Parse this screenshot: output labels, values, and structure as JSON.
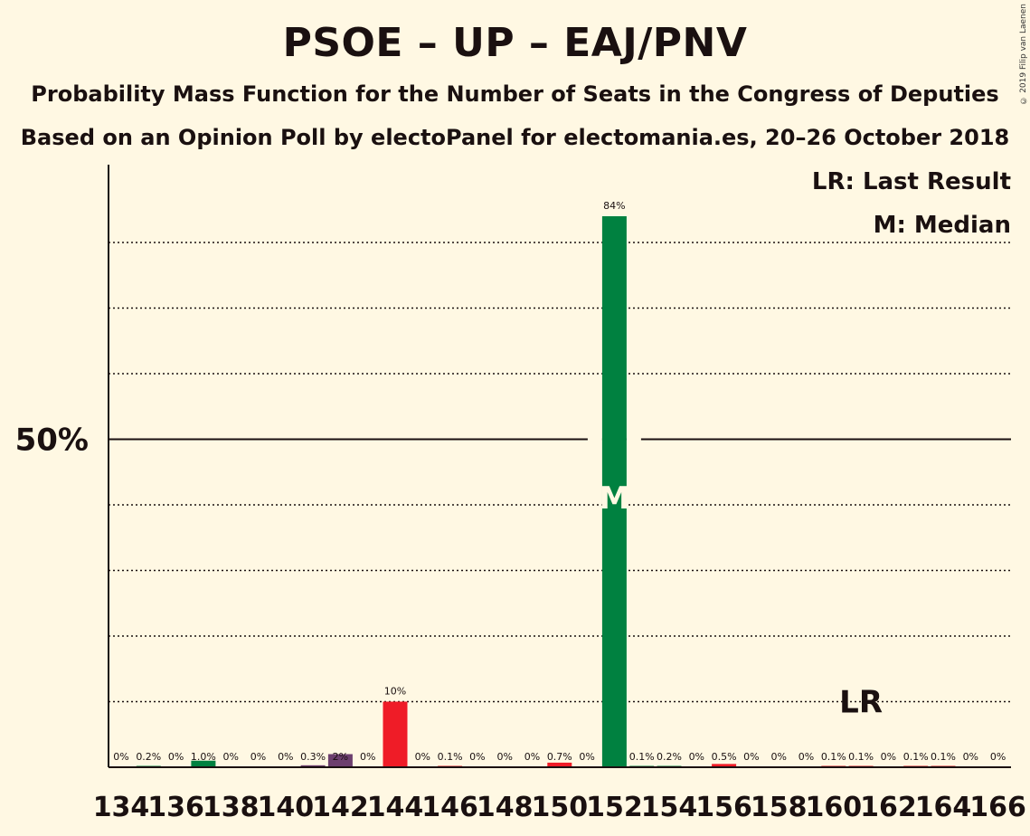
{
  "title": "PSOE – UP – EAJ/PNV",
  "subtitle1": "Probability Mass Function for the Number of Seats in the Congress of Deputies",
  "subtitle2": "Based on an Opinion Poll by electoPanel for electomania.es, 20–26 October 2018",
  "copyright": "© 2019 Filip van Laenen",
  "legend": {
    "lr": "LR: Last Result",
    "m": "M: Median"
  },
  "markers": {
    "median_label": "M",
    "median_seats": 152,
    "lr_label": "LR",
    "lr_seats": 161
  },
  "colors": {
    "background": "#FFF8E3",
    "psoe": "#EF1C27",
    "up": "#6C3F6E",
    "pnv": "#008140",
    "text": "#1a1010"
  },
  "chart_data": {
    "type": "bar",
    "ylabel": "",
    "xlabel": "",
    "ylim": [
      0,
      92
    ],
    "y_ticks": [
      {
        "value": 50,
        "label": "50%"
      }
    ],
    "gridlines": [
      10,
      20,
      30,
      40,
      60,
      70,
      80
    ],
    "x_tick_labels": [
      "134",
      "136",
      "138",
      "140",
      "142",
      "144",
      "146",
      "148",
      "150",
      "152",
      "154",
      "156",
      "158",
      "160",
      "162",
      "164",
      "166"
    ],
    "bars": [
      {
        "seats": 134,
        "value": 0.0,
        "label": "0%",
        "color": "#008140"
      },
      {
        "seats": 135,
        "value": 0.2,
        "label": "0.2%",
        "color": "#008140"
      },
      {
        "seats": 136,
        "value": 0.0,
        "label": "0%",
        "color": "#008140"
      },
      {
        "seats": 137,
        "value": 1.0,
        "label": "1.0%",
        "color": "#008140"
      },
      {
        "seats": 138,
        "value": 0.0,
        "label": "0%",
        "color": "#008140"
      },
      {
        "seats": 139,
        "value": 0.0,
        "label": "0%",
        "color": "#008140"
      },
      {
        "seats": 140,
        "value": 0.0,
        "label": "0%",
        "color": "#008140"
      },
      {
        "seats": 141,
        "value": 0.3,
        "label": "0.3%",
        "color": "#6C3F6E"
      },
      {
        "seats": 142,
        "value": 2.0,
        "label": "2%",
        "color": "#6C3F6E"
      },
      {
        "seats": 143,
        "value": 0.0,
        "label": "0%",
        "color": "#EF1C27"
      },
      {
        "seats": 144,
        "value": 10.0,
        "label": "10%",
        "color": "#EF1C27"
      },
      {
        "seats": 145,
        "value": 0.0,
        "label": "0%",
        "color": "#EF1C27"
      },
      {
        "seats": 146,
        "value": 0.1,
        "label": "0.1%",
        "color": "#EF1C27"
      },
      {
        "seats": 147,
        "value": 0.0,
        "label": "0%",
        "color": "#EF1C27"
      },
      {
        "seats": 148,
        "value": 0.0,
        "label": "0%",
        "color": "#EF1C27"
      },
      {
        "seats": 149,
        "value": 0.0,
        "label": "0%",
        "color": "#EF1C27"
      },
      {
        "seats": 150,
        "value": 0.7,
        "label": "0.7%",
        "color": "#EF1C27"
      },
      {
        "seats": 151,
        "value": 0.0,
        "label": "0%",
        "color": "#EF1C27"
      },
      {
        "seats": 152,
        "value": 84.0,
        "label": "84%",
        "color": "#008140"
      },
      {
        "seats": 153,
        "value": 0.1,
        "label": "0.1%",
        "color": "#008140"
      },
      {
        "seats": 154,
        "value": 0.2,
        "label": "0.2%",
        "color": "#008140"
      },
      {
        "seats": 155,
        "value": 0.0,
        "label": "0%",
        "color": "#008140"
      },
      {
        "seats": 156,
        "value": 0.5,
        "label": "0.5%",
        "color": "#EF1C27"
      },
      {
        "seats": 157,
        "value": 0.0,
        "label": "0%",
        "color": "#EF1C27"
      },
      {
        "seats": 158,
        "value": 0.0,
        "label": "0%",
        "color": "#EF1C27"
      },
      {
        "seats": 159,
        "value": 0.0,
        "label": "0%",
        "color": "#EF1C27"
      },
      {
        "seats": 160,
        "value": 0.1,
        "label": "0.1%",
        "color": "#EF1C27"
      },
      {
        "seats": 161,
        "value": 0.1,
        "label": "0.1%",
        "color": "#EF1C27"
      },
      {
        "seats": 162,
        "value": 0.0,
        "label": "0%",
        "color": "#EF1C27"
      },
      {
        "seats": 163,
        "value": 0.1,
        "label": "0.1%",
        "color": "#EF1C27"
      },
      {
        "seats": 164,
        "value": 0.1,
        "label": "0.1%",
        "color": "#EF1C27"
      },
      {
        "seats": 165,
        "value": 0.0,
        "label": "0%",
        "color": "#EF1C27"
      },
      {
        "seats": 166,
        "value": 0.0,
        "label": "0%",
        "color": "#EF1C27"
      }
    ]
  }
}
